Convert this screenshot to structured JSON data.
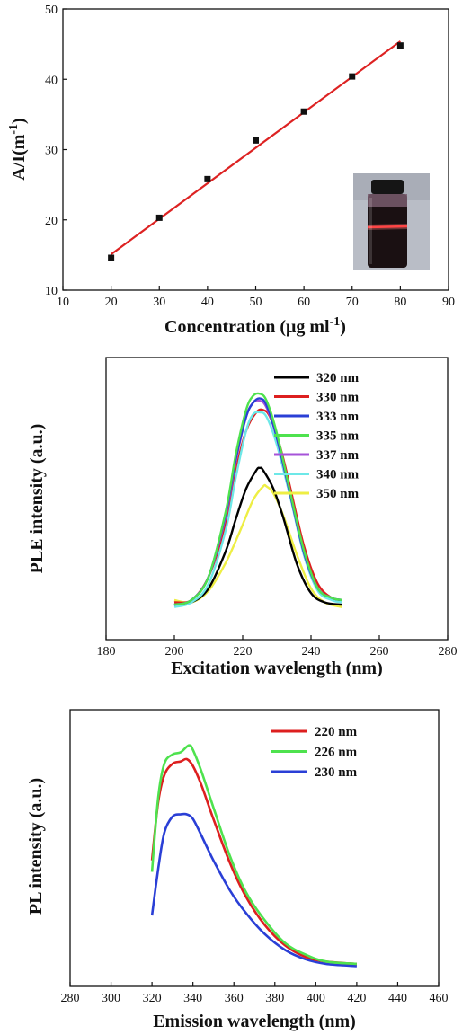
{
  "chart_data": [
    {
      "type": "scatter",
      "xlabel": "Concentration (μg ml",
      "xlabel_sup": "-1",
      "xlabel_end": ")",
      "ylabel": "A/I(m",
      "ylabel_sup": "-1",
      "ylabel_end": ")",
      "xlim": [
        10,
        90
      ],
      "ylim": [
        10,
        50
      ],
      "xticks": [
        10,
        20,
        30,
        40,
        50,
        60,
        70,
        80,
        90
      ],
      "yticks": [
        10,
        20,
        30,
        40,
        50
      ],
      "series": [
        {
          "points": [
            [
              20,
              14.6
            ],
            [
              30,
              20.3
            ],
            [
              40,
              25.8
            ],
            [
              50,
              31.3
            ],
            [
              60,
              35.4
            ],
            [
              70,
              40.4
            ],
            [
              80,
              44.8
            ]
          ],
          "marker": "square",
          "color": "#111111"
        }
      ],
      "fit_line": {
        "x": [
          20,
          80
        ],
        "y": [
          15.1,
          45.4
        ],
        "color": "#dd2222"
      },
      "inset": "photo of vial with red laser beam"
    },
    {
      "type": "line",
      "xlabel": "Excitation wavelength (nm)",
      "ylabel": "PLE intensity (a.u.)",
      "xlim": [
        180,
        280
      ],
      "ylim": [
        0,
        1
      ],
      "xticks": [
        180,
        200,
        220,
        240,
        260,
        280
      ],
      "legend_position": "top-right",
      "series": [
        {
          "name": "320 nm",
          "color": "#000000",
          "x": [
            200,
            205,
            210,
            215,
            218,
            221,
            224,
            225,
            226,
            229,
            232,
            236,
            240,
            244,
            249
          ],
          "y": [
            0.05,
            0.06,
            0.12,
            0.28,
            0.42,
            0.55,
            0.63,
            0.64,
            0.63,
            0.55,
            0.42,
            0.22,
            0.1,
            0.06,
            0.05
          ]
        },
        {
          "name": "330 nm",
          "color": "#dd1f1f",
          "x": [
            200,
            205,
            210,
            215,
            218,
            221,
            224,
            226,
            228,
            231,
            234,
            238,
            242,
            246,
            249
          ],
          "y": [
            0.06,
            0.07,
            0.17,
            0.4,
            0.63,
            0.8,
            0.88,
            0.89,
            0.86,
            0.73,
            0.55,
            0.3,
            0.14,
            0.08,
            0.07
          ]
        },
        {
          "name": "333 nm",
          "color": "#2a3fd6",
          "x": [
            200,
            205,
            210,
            215,
            218,
            221,
            223,
            225,
            227,
            230,
            234,
            238,
            242,
            246,
            249
          ],
          "y": [
            0.05,
            0.07,
            0.17,
            0.44,
            0.68,
            0.86,
            0.92,
            0.94,
            0.91,
            0.77,
            0.52,
            0.27,
            0.12,
            0.08,
            0.07
          ]
        },
        {
          "name": "335 nm",
          "color": "#4ee24e",
          "x": [
            200,
            205,
            210,
            215,
            218,
            221,
            223,
            225,
            227,
            230,
            234,
            238,
            242,
            246,
            249
          ],
          "y": [
            0.05,
            0.07,
            0.17,
            0.45,
            0.7,
            0.89,
            0.95,
            0.96,
            0.93,
            0.79,
            0.53,
            0.28,
            0.12,
            0.08,
            0.07
          ]
        },
        {
          "name": "337 nm",
          "color": "#a653d8",
          "x": [
            200,
            205,
            210,
            215,
            218,
            221,
            223,
            225,
            227,
            230,
            234,
            238,
            242,
            246,
            249
          ],
          "y": [
            0.05,
            0.07,
            0.17,
            0.43,
            0.67,
            0.86,
            0.92,
            0.93,
            0.9,
            0.77,
            0.52,
            0.27,
            0.12,
            0.08,
            0.07
          ]
        },
        {
          "name": "340 nm",
          "color": "#6de8e8",
          "x": [
            200,
            205,
            210,
            215,
            218,
            221,
            223,
            225,
            227,
            230,
            234,
            238,
            242,
            246,
            249
          ],
          "y": [
            0.04,
            0.06,
            0.14,
            0.37,
            0.6,
            0.8,
            0.87,
            0.88,
            0.86,
            0.74,
            0.51,
            0.26,
            0.11,
            0.07,
            0.06
          ]
        },
        {
          "name": "350 nm",
          "color": "#eeee44",
          "x": [
            200,
            205,
            210,
            215,
            219,
            223,
            226,
            227,
            229,
            232,
            236,
            240,
            244,
            249
          ],
          "y": [
            0.07,
            0.06,
            0.11,
            0.23,
            0.36,
            0.5,
            0.56,
            0.56,
            0.53,
            0.43,
            0.26,
            0.12,
            0.06,
            0.04
          ]
        }
      ]
    },
    {
      "type": "line",
      "xlabel": "Emission wavelength (nm)",
      "ylabel": "PL intensity (a.u.)",
      "xlim": [
        280,
        460
      ],
      "ylim": [
        0,
        1
      ],
      "xticks": [
        280,
        300,
        320,
        340,
        360,
        380,
        400,
        420,
        440,
        460
      ],
      "legend_position": "top-right",
      "series": [
        {
          "name": "220 nm",
          "color": "#dd1f1f",
          "x": [
            320,
            323,
            326,
            330,
            334,
            337,
            340,
            344,
            350,
            358,
            366,
            375,
            385,
            395,
            405,
            420
          ],
          "y": [
            0.47,
            0.72,
            0.84,
            0.89,
            0.9,
            0.91,
            0.88,
            0.8,
            0.65,
            0.46,
            0.31,
            0.19,
            0.1,
            0.05,
            0.03,
            0.02
          ]
        },
        {
          "name": "226 nm",
          "color": "#4ee24e",
          "x": [
            320,
            323,
            326,
            330,
            334,
            338,
            340,
            344,
            350,
            358,
            366,
            375,
            385,
            395,
            405,
            420
          ],
          "y": [
            0.42,
            0.74,
            0.89,
            0.93,
            0.94,
            0.97,
            0.95,
            0.86,
            0.7,
            0.49,
            0.33,
            0.21,
            0.11,
            0.06,
            0.03,
            0.02
          ]
        },
        {
          "name": "230 nm",
          "color": "#2a3fd6",
          "x": [
            320,
            323,
            326,
            330,
            334,
            337,
            340,
            344,
            350,
            358,
            366,
            375,
            385,
            395,
            405,
            420
          ],
          "y": [
            0.23,
            0.43,
            0.59,
            0.66,
            0.67,
            0.67,
            0.65,
            0.58,
            0.47,
            0.34,
            0.24,
            0.15,
            0.08,
            0.04,
            0.02,
            0.01
          ]
        }
      ]
    }
  ]
}
